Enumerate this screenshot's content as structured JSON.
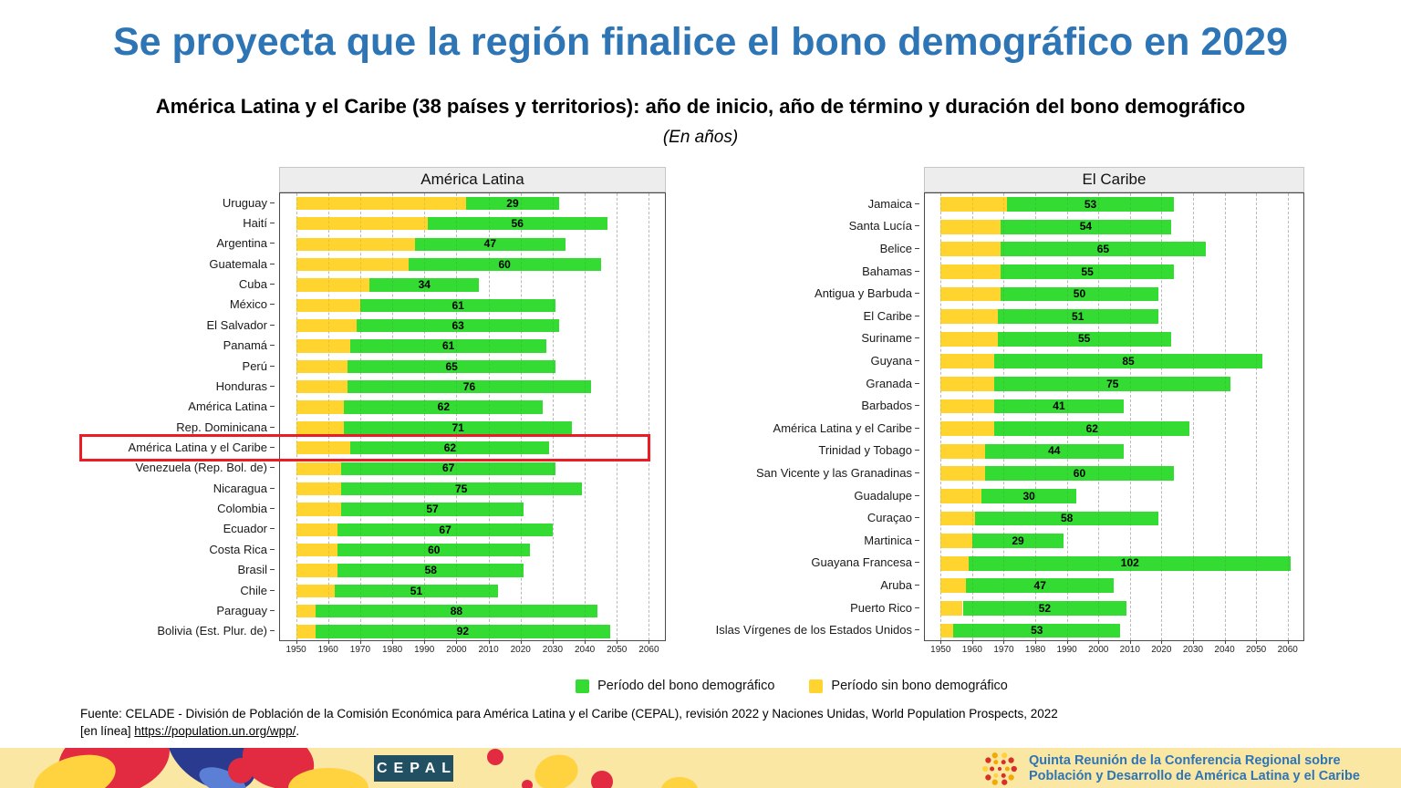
{
  "title": "Se proyecta que la región finalice el bono demográfico en 2029",
  "subtitle": "América Latina y el Caribe (38 países y territorios): año de inicio, año de término y duración del bono demográfico",
  "unit_note": "(En años)",
  "colors": {
    "bonus_green": "#33DB33",
    "no_bonus_yellow": "#FFD42E",
    "title_blue": "#2E75B6",
    "highlight_red": "#EC1C24",
    "footer_bg": "#FAE7A4",
    "cepal_navy": "#215062",
    "conference_blue": "#2E75B6"
  },
  "axis": {
    "min": 1950,
    "max": 2060,
    "step": 10,
    "ticks": [
      1950,
      1960,
      1970,
      1980,
      1990,
      2000,
      2010,
      2020,
      2030,
      2040,
      2050,
      2060
    ],
    "plot_domain": [
      1945,
      2065
    ],
    "grid": "dashed"
  },
  "legend": {
    "position": "bottom-center",
    "items": [
      {
        "key": "bonus",
        "label": "Período del bono demográfico",
        "color": "#33DB33"
      },
      {
        "key": "no_bonus",
        "label": "Período sin bono demográfico",
        "color": "#FFD42E"
      }
    ]
  },
  "highlight": {
    "chart": "América Latina",
    "row": "América Latina y el Caribe",
    "color": "#EC1C24"
  },
  "chart_data": [
    {
      "type": "bar",
      "orientation": "horizontal",
      "title": "América Latina",
      "xlabel": "",
      "ylabel": "",
      "xlim": [
        1950,
        2060
      ],
      "value_label": "duración (años) dentro del segmento verde",
      "rows": [
        {
          "name": "Uruguay",
          "start": 2003,
          "end": 2032,
          "duration": 29
        },
        {
          "name": "Haití",
          "start": 1991,
          "end": 2047,
          "duration": 56
        },
        {
          "name": "Argentina",
          "start": 1987,
          "end": 2034,
          "duration": 47
        },
        {
          "name": "Guatemala",
          "start": 1985,
          "end": 2045,
          "duration": 60
        },
        {
          "name": "Cuba",
          "start": 1973,
          "end": 2007,
          "duration": 34
        },
        {
          "name": "México",
          "start": 1970,
          "end": 2031,
          "duration": 61
        },
        {
          "name": "El Salvador",
          "start": 1969,
          "end": 2032,
          "duration": 63
        },
        {
          "name": "Panamá",
          "start": 1967,
          "end": 2028,
          "duration": 61
        },
        {
          "name": "Perú",
          "start": 1966,
          "end": 2031,
          "duration": 65
        },
        {
          "name": "Honduras",
          "start": 1966,
          "end": 2042,
          "duration": 76
        },
        {
          "name": "América Latina",
          "start": 1965,
          "end": 2027,
          "duration": 62
        },
        {
          "name": "Rep. Dominicana",
          "start": 1965,
          "end": 2036,
          "duration": 71
        },
        {
          "name": "América Latina y el Caribe",
          "start": 1967,
          "end": 2029,
          "duration": 62
        },
        {
          "name": "Venezuela (Rep. Bol. de)",
          "start": 1964,
          "end": 2031,
          "duration": 67
        },
        {
          "name": "Nicaragua",
          "start": 1964,
          "end": 2039,
          "duration": 75
        },
        {
          "name": "Colombia",
          "start": 1964,
          "end": 2021,
          "duration": 57
        },
        {
          "name": "Ecuador",
          "start": 1963,
          "end": 2030,
          "duration": 67
        },
        {
          "name": "Costa Rica",
          "start": 1963,
          "end": 2023,
          "duration": 60
        },
        {
          "name": "Brasil",
          "start": 1963,
          "end": 2021,
          "duration": 58
        },
        {
          "name": "Chile",
          "start": 1962,
          "end": 2013,
          "duration": 51
        },
        {
          "name": "Paraguay",
          "start": 1956,
          "end": 2044,
          "duration": 88
        },
        {
          "name": "Bolivia (Est. Plur. de)",
          "start": 1956,
          "end": 2048,
          "duration": 92
        }
      ]
    },
    {
      "type": "bar",
      "orientation": "horizontal",
      "title": "El Caribe",
      "xlabel": "",
      "ylabel": "",
      "xlim": [
        1950,
        2060
      ],
      "value_label": "duración (años) dentro del segmento verde",
      "rows": [
        {
          "name": "Jamaica",
          "start": 1971,
          "end": 2024,
          "duration": 53
        },
        {
          "name": "Santa Lucía",
          "start": 1969,
          "end": 2023,
          "duration": 54
        },
        {
          "name": "Belice",
          "start": 1969,
          "end": 2034,
          "duration": 65
        },
        {
          "name": "Bahamas",
          "start": 1969,
          "end": 2024,
          "duration": 55
        },
        {
          "name": "Antigua y Barbuda",
          "start": 1969,
          "end": 2019,
          "duration": 50
        },
        {
          "name": "El Caribe",
          "start": 1968,
          "end": 2019,
          "duration": 51
        },
        {
          "name": "Suriname",
          "start": 1968,
          "end": 2023,
          "duration": 55
        },
        {
          "name": "Guyana",
          "start": 1967,
          "end": 2052,
          "duration": 85
        },
        {
          "name": "Granada",
          "start": 1967,
          "end": 2042,
          "duration": 75
        },
        {
          "name": "Barbados",
          "start": 1967,
          "end": 2008,
          "duration": 41
        },
        {
          "name": "América Latina y el Caribe",
          "start": 1967,
          "end": 2029,
          "duration": 62
        },
        {
          "name": "Trinidad y Tobago",
          "start": 1964,
          "end": 2008,
          "duration": 44
        },
        {
          "name": "San Vicente y las Granadinas",
          "start": 1964,
          "end": 2024,
          "duration": 60
        },
        {
          "name": "Guadalupe",
          "start": 1963,
          "end": 1993,
          "duration": 30
        },
        {
          "name": "Curaçao",
          "start": 1961,
          "end": 2019,
          "duration": 58
        },
        {
          "name": "Martinica",
          "start": 1960,
          "end": 1989,
          "duration": 29
        },
        {
          "name": "Guayana Francesa",
          "start": 1959,
          "end": 2061,
          "duration": 102
        },
        {
          "name": "Aruba",
          "start": 1958,
          "end": 2005,
          "duration": 47
        },
        {
          "name": "Puerto Rico",
          "start": 1957,
          "end": 2009,
          "duration": 52
        },
        {
          "name": "Islas Vírgenes de los Estados Unidos",
          "start": 1954,
          "end": 2007,
          "duration": 53
        }
      ]
    }
  ],
  "source": {
    "line1": "Fuente: CELADE - División de Población de la Comisión Económica para América Latina y el Caribe (CEPAL), revisión 2022 y Naciones Unidas, World Population Prospects, 2022",
    "line2_prefix": "[en línea] ",
    "link_text": "https://population.un.org/wpp/",
    "line2_suffix": "."
  },
  "footer": {
    "cepal_logo_text": "CEPAL",
    "conference_line1": "Quinta Reunión de la Conferencia Regional sobre",
    "conference_line2": "Población y Desarrollo de América Latina y el Caribe"
  }
}
